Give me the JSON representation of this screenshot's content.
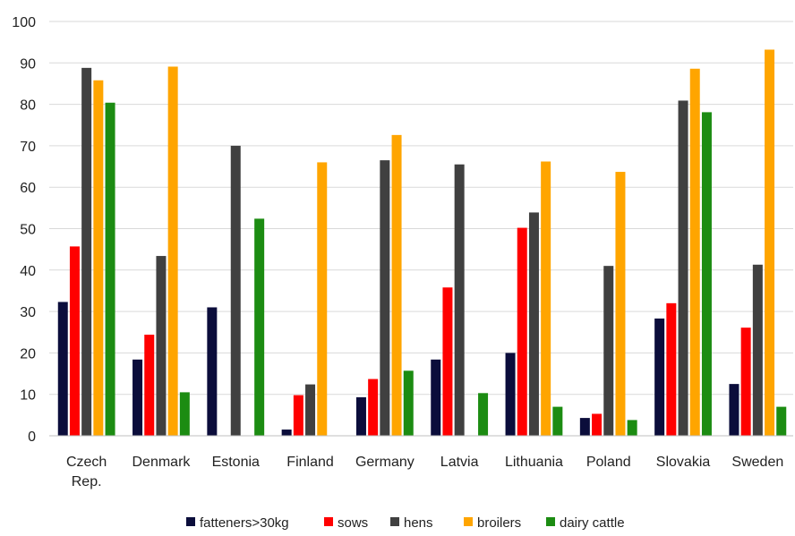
{
  "chart_data": {
    "type": "bar",
    "categories": [
      [
        "Czech",
        "Rep."
      ],
      [
        "Denmark"
      ],
      [
        "Estonia"
      ],
      [
        "Finland"
      ],
      [
        "Germany"
      ],
      [
        "Latvia"
      ],
      [
        "Lithuania"
      ],
      [
        "Poland"
      ],
      [
        "Slovakia"
      ],
      [
        "Sweden"
      ]
    ],
    "series": [
      {
        "name": "fatteners>30kg",
        "color": "#0b0d3b",
        "values": [
          32.3,
          18.4,
          31.0,
          1.5,
          9.3,
          18.4,
          20.0,
          4.3,
          28.3,
          12.5
        ]
      },
      {
        "name": "sows",
        "color": "#ff0000",
        "values": [
          45.7,
          24.4,
          null,
          9.8,
          13.7,
          35.8,
          50.2,
          5.3,
          32.0,
          26.1
        ]
      },
      {
        "name": "hens",
        "color": "#404040",
        "values": [
          88.8,
          43.4,
          70.0,
          12.4,
          66.5,
          65.5,
          53.9,
          41.0,
          80.9,
          41.3
        ]
      },
      {
        "name": "broilers",
        "color": "#ffa500",
        "values": [
          85.8,
          89.1,
          null,
          66.0,
          72.6,
          null,
          66.2,
          63.7,
          88.6,
          93.2
        ]
      },
      {
        "name": "dairy cattle",
        "color": "#1c8c12",
        "values": [
          80.4,
          10.5,
          52.4,
          null,
          15.7,
          10.3,
          7.0,
          3.8,
          78.1,
          7.0
        ]
      }
    ],
    "title": "",
    "xlabel": "",
    "ylabel": "",
    "ylim": [
      0,
      100
    ],
    "yticks": [
      0,
      10,
      20,
      30,
      40,
      50,
      60,
      70,
      80,
      90,
      100
    ],
    "grid": true,
    "legend_position": "bottom"
  }
}
